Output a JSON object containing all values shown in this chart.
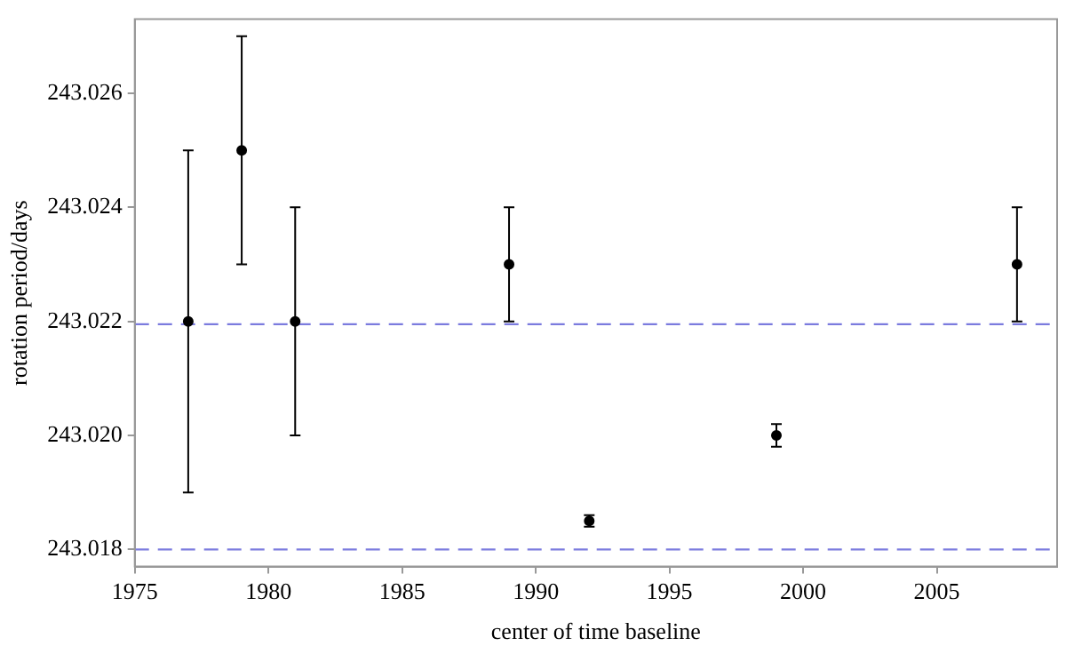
{
  "chart_data": {
    "type": "scatter",
    "xlabel": "center of time baseline",
    "ylabel": "rotation period/days",
    "x": [
      1977,
      1979,
      1981,
      1989,
      1992,
      1999,
      2008
    ],
    "values": [
      243.022,
      243.025,
      243.022,
      243.023,
      243.0185,
      243.02,
      243.023
    ],
    "errors": [
      0.003,
      0.002,
      0.002,
      0.001,
      0.0001,
      0.0002,
      0.001
    ],
    "color": "#000000",
    "marker": "circle",
    "xlim": [
      1975,
      2009.5
    ],
    "xticks": [
      1975,
      1980,
      1985,
      1990,
      1995,
      2000,
      2005
    ],
    "ylim": [
      243.0177,
      243.0273
    ],
    "yticks": [
      {
        "value": 243.018,
        "label": "243.018"
      },
      {
        "value": 243.02,
        "label": "243.020"
      },
      {
        "value": 243.022,
        "label": "243.022"
      },
      {
        "value": 243.024,
        "label": "243.024"
      },
      {
        "value": 243.026,
        "label": "243.026"
      }
    ],
    "ref_lines": [
      {
        "axis": "y",
        "value": 243.02195,
        "color": "#7b7bde",
        "line_style": "dashed"
      },
      {
        "axis": "y",
        "value": 243.018,
        "color": "#7b7bde",
        "line_style": "dashed"
      }
    ],
    "grid": false,
    "legend": false
  }
}
